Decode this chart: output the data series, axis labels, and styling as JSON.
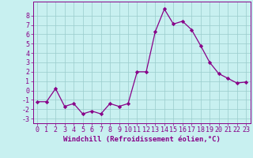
{
  "x": [
    0,
    1,
    2,
    3,
    4,
    5,
    6,
    7,
    8,
    9,
    10,
    11,
    12,
    13,
    14,
    15,
    16,
    17,
    18,
    19,
    20,
    21,
    22,
    23
  ],
  "y": [
    -1.2,
    -1.2,
    0.2,
    -1.7,
    -1.4,
    -2.5,
    -2.2,
    -2.5,
    -1.4,
    -1.7,
    -1.4,
    2.0,
    2.0,
    6.3,
    8.7,
    7.1,
    7.4,
    6.5,
    4.8,
    3.0,
    1.8,
    1.3,
    0.8,
    0.9
  ],
  "line_color": "#880088",
  "marker": "D",
  "markersize": 2.2,
  "linewidth": 0.9,
  "bg_color": "#c8f0f0",
  "grid_color": "#99cccc",
  "xlabel": "Windchill (Refroidissement éolien,°C)",
  "ylim": [
    -3.5,
    9.5
  ],
  "xlim": [
    -0.5,
    23.5
  ],
  "xtick_labels": [
    "0",
    "1",
    "2",
    "3",
    "4",
    "5",
    "6",
    "7",
    "8",
    "9",
    "10",
    "11",
    "12",
    "13",
    "14",
    "15",
    "16",
    "17",
    "18",
    "19",
    "20",
    "21",
    "22",
    "23"
  ],
  "ytick_values": [
    -3,
    -2,
    -1,
    0,
    1,
    2,
    3,
    4,
    5,
    6,
    7,
    8
  ],
  "axis_color": "#880088",
  "tick_color": "#880088",
  "label_fontsize": 6.5,
  "tick_fontsize": 6.0
}
